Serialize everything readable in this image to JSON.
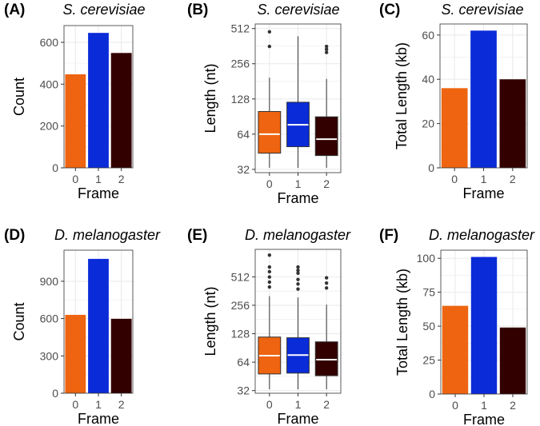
{
  "colors": {
    "frame0": "#EE6410",
    "frame1": "#0A2BD8",
    "frame2": "#330000",
    "grid": "#EBEBEB",
    "border": "#333333",
    "tick": "#4D4D4D",
    "median": "#FFFFFF"
  },
  "chart_data": [
    {
      "id": "A",
      "panel_label": "(A)",
      "type": "bar",
      "title": "S. cerevisiae",
      "xlabel": "Frame",
      "ylabel": "Count",
      "categories": [
        "0",
        "1",
        "2"
      ],
      "values": [
        447,
        645,
        549
      ],
      "ylim": [
        0,
        680
      ],
      "yticks": [
        0,
        200,
        400,
        600
      ],
      "ytick_labels": [
        "0",
        "200",
        "400",
        "600"
      ]
    },
    {
      "id": "B",
      "panel_label": "(B)",
      "type": "box",
      "scale": "log2",
      "title": "S. cerevisiae",
      "xlabel": "Frame",
      "ylabel": "Length (nt)",
      "categories": [
        "0",
        "1",
        "2"
      ],
      "ylim": [
        30,
        560
      ],
      "yticks": [
        32,
        64,
        128,
        256,
        512
      ],
      "ytick_labels": [
        "32",
        "64",
        "128",
        "256",
        "512"
      ],
      "boxes": [
        {
          "whisker_low": 33,
          "q1": 44,
          "median": 64,
          "q3": 100,
          "whisker_high": 195,
          "outliers": [
            360,
            480
          ]
        },
        {
          "whisker_low": 33,
          "q1": 50,
          "median": 77,
          "q3": 120,
          "whisker_high": 440,
          "outliers": []
        },
        {
          "whisker_low": 33,
          "q1": 42,
          "median": 58,
          "q3": 90,
          "whisker_high": 190,
          "outliers": [
            320,
            340,
            360
          ]
        }
      ]
    },
    {
      "id": "C",
      "panel_label": "(C)",
      "type": "bar",
      "title": "S. cerevisiae",
      "xlabel": "Frame",
      "ylabel": "Total Length (kb)",
      "categories": [
        "0",
        "1",
        "2"
      ],
      "values": [
        36,
        62,
        40
      ],
      "ylim": [
        0,
        65
      ],
      "yticks": [
        0,
        20,
        40,
        60
      ],
      "ytick_labels": [
        "0",
        "20",
        "40",
        "60"
      ]
    },
    {
      "id": "D",
      "panel_label": "(D)",
      "type": "bar",
      "title": "D. melanogaster",
      "xlabel": "Frame",
      "ylabel": "Count",
      "categories": [
        "0",
        "1",
        "2"
      ],
      "values": [
        630,
        1080,
        598
      ],
      "ylim": [
        0,
        1150
      ],
      "yticks": [
        0,
        300,
        600,
        900
      ],
      "ytick_labels": [
        "0",
        "300",
        "600",
        "900"
      ]
    },
    {
      "id": "E",
      "panel_label": "(E)",
      "type": "box",
      "scale": "log2",
      "title": "D. melanogaster",
      "xlabel": "Frame",
      "ylabel": "Length (nt)",
      "categories": [
        "0",
        "1",
        "2"
      ],
      "ylim": [
        30,
        1000
      ],
      "yticks": [
        32,
        64,
        128,
        256,
        512
      ],
      "ytick_labels": [
        "32",
        "64",
        "128",
        "256",
        "512"
      ],
      "boxes": [
        {
          "whisker_low": 33,
          "q1": 48,
          "median": 75,
          "q3": 118,
          "whisker_high": 320,
          "outliers": [
            400,
            450,
            510,
            580,
            650,
            870
          ]
        },
        {
          "whisker_low": 33,
          "q1": 49,
          "median": 76,
          "q3": 116,
          "whisker_high": 310,
          "outliers": [
            380,
            430,
            480,
            560,
            600,
            650
          ]
        },
        {
          "whisker_low": 33,
          "q1": 46,
          "median": 68,
          "q3": 105,
          "whisker_high": 260,
          "outliers": [
            390,
            440,
            500
          ]
        }
      ]
    },
    {
      "id": "F",
      "panel_label": "(F)",
      "type": "bar",
      "title": "D. melanogaster",
      "xlabel": "Frame",
      "ylabel": "Total Length (kb)",
      "categories": [
        "0",
        "1",
        "2"
      ],
      "values": [
        65,
        101,
        49
      ],
      "ylim": [
        0,
        106
      ],
      "yticks": [
        0,
        25,
        50,
        75,
        100
      ],
      "ytick_labels": [
        "0",
        "25",
        "50",
        "75",
        "100"
      ]
    }
  ]
}
